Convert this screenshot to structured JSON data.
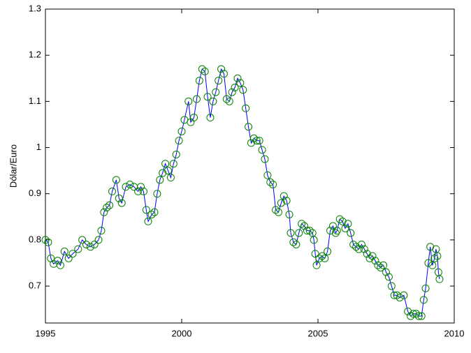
{
  "chart_data": {
    "type": "line",
    "ylabel": "Dólar/Euro",
    "color": "#0000ff",
    "marker_color": "#008000",
    "marker": "circle",
    "xlim": [
      1995,
      2010
    ],
    "xticks": [
      1995,
      2000,
      2005,
      2010
    ],
    "ylim": [
      0.62,
      1.3
    ],
    "yticks": [
      0.7,
      0.8,
      0.9,
      1,
      1.1,
      1.2,
      1.3
    ],
    "x": [
      1995.0,
      1995.1,
      1995.2,
      1995.3,
      1995.45,
      1995.55,
      1995.7,
      1995.85,
      1996.0,
      1996.2,
      1996.35,
      1996.5,
      1996.65,
      1996.8,
      1996.95,
      1997.05,
      1997.15,
      1997.25,
      1997.35,
      1997.45,
      1997.6,
      1997.7,
      1997.8,
      1997.95,
      1998.1,
      1998.25,
      1998.4,
      1998.5,
      1998.6,
      1998.7,
      1998.77,
      1998.9,
      1999.0,
      1999.1,
      1999.2,
      1999.3,
      1999.4,
      1999.5,
      1999.6,
      1999.7,
      1999.8,
      1999.9,
      2000.0,
      2000.1,
      2000.25,
      2000.33,
      2000.45,
      2000.55,
      2000.65,
      2000.75,
      2000.85,
      2000.95,
      2001.05,
      2001.15,
      2001.25,
      2001.35,
      2001.45,
      2001.55,
      2001.65,
      2001.75,
      2001.85,
      2001.95,
      2002.05,
      2002.15,
      2002.25,
      2002.35,
      2002.45,
      2002.55,
      2002.65,
      2002.75,
      2002.85,
      2002.95,
      2003.05,
      2003.15,
      2003.25,
      2003.35,
      2003.45,
      2003.55,
      2003.65,
      2003.75,
      2003.85,
      2003.95,
      2004.0,
      2004.1,
      2004.2,
      2004.3,
      2004.4,
      2004.5,
      2004.6,
      2004.7,
      2004.8,
      2004.85,
      2004.9,
      2004.95,
      2005.05,
      2005.15,
      2005.25,
      2005.35,
      2005.45,
      2005.55,
      2005.65,
      2005.7,
      2005.8,
      2005.9,
      2006.0,
      2006.1,
      2006.2,
      2006.3,
      2006.4,
      2006.5,
      2006.6,
      2006.7,
      2006.8,
      2006.9,
      2007.0,
      2007.1,
      2007.2,
      2007.3,
      2007.4,
      2007.5,
      2007.6,
      2007.7,
      2007.8,
      2007.9,
      2008.0,
      2008.15,
      2008.3,
      2008.4,
      2008.5,
      2008.6,
      2008.7,
      2008.8,
      2008.88,
      2008.95,
      2009.05,
      2009.12,
      2009.2,
      2009.28,
      2009.33,
      2009.38,
      2009.42,
      2009.46
    ],
    "values": [
      0.8,
      0.795,
      0.76,
      0.748,
      0.755,
      0.745,
      0.775,
      0.76,
      0.77,
      0.78,
      0.8,
      0.79,
      0.785,
      0.79,
      0.8,
      0.82,
      0.86,
      0.87,
      0.875,
      0.905,
      0.93,
      0.89,
      0.88,
      0.915,
      0.92,
      0.915,
      0.905,
      0.915,
      0.905,
      0.865,
      0.84,
      0.855,
      0.86,
      0.9,
      0.93,
      0.945,
      0.965,
      0.95,
      0.935,
      0.965,
      0.985,
      1.015,
      1.035,
      1.06,
      1.1,
      1.055,
      1.065,
      1.105,
      1.145,
      1.17,
      1.165,
      1.11,
      1.065,
      1.1,
      1.12,
      1.145,
      1.17,
      1.16,
      1.105,
      1.1,
      1.12,
      1.13,
      1.15,
      1.14,
      1.125,
      1.085,
      1.045,
      1.01,
      1.02,
      1.015,
      1.015,
      0.995,
      0.975,
      0.94,
      0.925,
      0.92,
      0.865,
      0.86,
      0.88,
      0.895,
      0.885,
      0.855,
      0.815,
      0.795,
      0.79,
      0.815,
      0.835,
      0.83,
      0.82,
      0.82,
      0.815,
      0.8,
      0.77,
      0.745,
      0.76,
      0.765,
      0.76,
      0.775,
      0.82,
      0.83,
      0.815,
      0.82,
      0.845,
      0.84,
      0.825,
      0.835,
      0.815,
      0.79,
      0.785,
      0.78,
      0.79,
      0.78,
      0.77,
      0.76,
      0.765,
      0.755,
      0.745,
      0.74,
      0.745,
      0.73,
      0.72,
      0.7,
      0.68,
      0.68,
      0.675,
      0.68,
      0.645,
      0.635,
      0.64,
      0.64,
      0.635,
      0.635,
      0.67,
      0.695,
      0.75,
      0.785,
      0.745,
      0.76,
      0.78,
      0.765,
      0.73,
      0.715
    ]
  }
}
